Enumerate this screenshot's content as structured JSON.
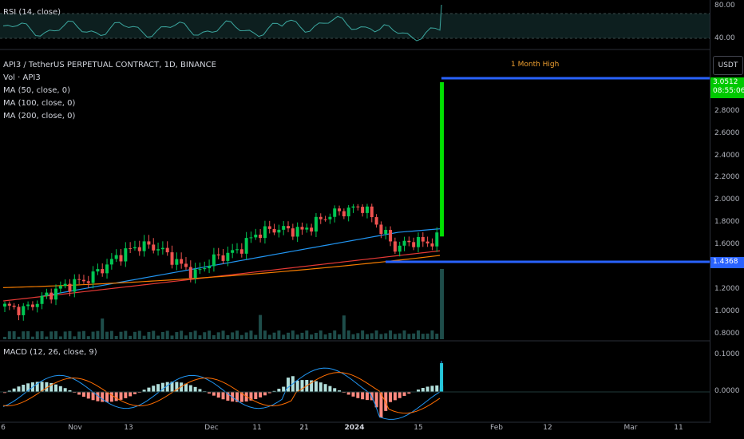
{
  "rsi": {
    "label": "RSI (14, close)",
    "levels": [
      "80.00",
      "40.00"
    ]
  },
  "main": {
    "title": "API3 / TetherUS PERPETUAL CONTRACT, 1D, BINANCE",
    "indicators": [
      "Vol · API3",
      "MA (50, close, 0)",
      "MA (100, close, 0)",
      "MA (200, close, 0)"
    ],
    "annotation": "1 Month High",
    "price_levels": [
      "2.8000",
      "2.6000",
      "2.4000",
      "2.2000",
      "2.0000",
      "1.8000",
      "1.6000",
      "1.2000",
      "1.0000",
      "0.8000"
    ],
    "current_price": "3.0512",
    "countdown": "08:55:06",
    "support_price": "1.4368",
    "currency": "USDT"
  },
  "macd": {
    "label": "MACD (12, 26, close, 9)",
    "levels": [
      "0.1000",
      "0.0000"
    ]
  },
  "time_axis": [
    {
      "label": "6",
      "bold": false
    },
    {
      "label": "Nov",
      "bold": false
    },
    {
      "label": "13",
      "bold": false
    },
    {
      "label": "Dec",
      "bold": false
    },
    {
      "label": "11",
      "bold": false
    },
    {
      "label": "21",
      "bold": false
    },
    {
      "label": "2024",
      "bold": true
    },
    {
      "label": "15",
      "bold": false
    },
    {
      "label": "Feb",
      "bold": false
    },
    {
      "label": "12",
      "bold": false
    },
    {
      "label": "Mar",
      "bold": false
    },
    {
      "label": "11",
      "bold": false
    }
  ],
  "colors": {
    "up": "#26a69a",
    "down": "#ef5350",
    "spike": "#00e000",
    "line_blue": "#2962ff",
    "ma50": "#2196f3",
    "ma100": "#e53935",
    "ma200": "#f57c00",
    "annotation": "#f0a030"
  }
}
